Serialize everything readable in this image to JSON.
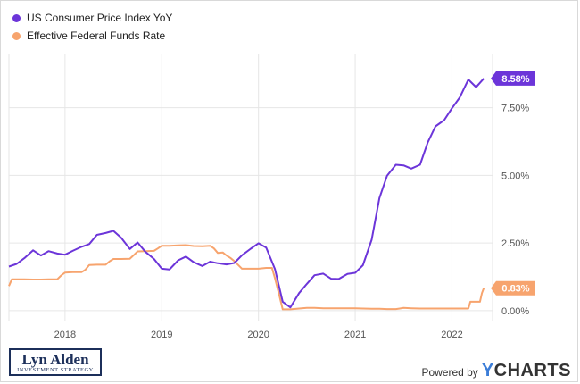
{
  "chart_data": {
    "type": "line",
    "x_ticks": [
      "2018",
      "2019",
      "2020",
      "2021",
      "2022"
    ],
    "y_ticks": [
      "0.00%",
      "2.50%",
      "5.00%",
      "7.50%"
    ],
    "ylim": [
      -0.4,
      9.5
    ],
    "grid": true,
    "legend_position": "top-left",
    "series": [
      {
        "name": "US Consumer Price Index YoY",
        "color": "#6c35d9",
        "end_label": "8.58%",
        "points": [
          [
            2017.42,
            1.63
          ],
          [
            2017.5,
            1.73
          ],
          [
            2017.58,
            1.94
          ],
          [
            2017.67,
            2.23
          ],
          [
            2017.75,
            2.04
          ],
          [
            2017.83,
            2.2
          ],
          [
            2017.92,
            2.11
          ],
          [
            2018.0,
            2.07
          ],
          [
            2018.08,
            2.21
          ],
          [
            2018.17,
            2.36
          ],
          [
            2018.25,
            2.46
          ],
          [
            2018.33,
            2.8
          ],
          [
            2018.42,
            2.87
          ],
          [
            2018.5,
            2.95
          ],
          [
            2018.58,
            2.7
          ],
          [
            2018.67,
            2.28
          ],
          [
            2018.75,
            2.52
          ],
          [
            2018.83,
            2.18
          ],
          [
            2018.92,
            1.91
          ],
          [
            2019.0,
            1.55
          ],
          [
            2019.08,
            1.52
          ],
          [
            2019.17,
            1.86
          ],
          [
            2019.25,
            2.0
          ],
          [
            2019.33,
            1.79
          ],
          [
            2019.42,
            1.65
          ],
          [
            2019.5,
            1.81
          ],
          [
            2019.58,
            1.75
          ],
          [
            2019.67,
            1.71
          ],
          [
            2019.75,
            1.76
          ],
          [
            2019.83,
            2.05
          ],
          [
            2019.92,
            2.29
          ],
          [
            2020.0,
            2.49
          ],
          [
            2020.08,
            2.33
          ],
          [
            2020.17,
            1.54
          ],
          [
            2020.25,
            0.33
          ],
          [
            2020.33,
            0.12
          ],
          [
            2020.42,
            0.65
          ],
          [
            2020.5,
            0.99
          ],
          [
            2020.58,
            1.31
          ],
          [
            2020.67,
            1.37
          ],
          [
            2020.75,
            1.18
          ],
          [
            2020.83,
            1.17
          ],
          [
            2020.92,
            1.36
          ],
          [
            2021.0,
            1.4
          ],
          [
            2021.08,
            1.68
          ],
          [
            2021.17,
            2.62
          ],
          [
            2021.25,
            4.16
          ],
          [
            2021.33,
            4.99
          ],
          [
            2021.42,
            5.39
          ],
          [
            2021.5,
            5.37
          ],
          [
            2021.58,
            5.25
          ],
          [
            2021.67,
            5.39
          ],
          [
            2021.75,
            6.22
          ],
          [
            2021.83,
            6.81
          ],
          [
            2021.92,
            7.04
          ],
          [
            2022.0,
            7.48
          ],
          [
            2022.08,
            7.87
          ],
          [
            2022.17,
            8.54
          ],
          [
            2022.25,
            8.26
          ],
          [
            2022.33,
            8.58
          ]
        ]
      },
      {
        "name": "Effective Federal Funds Rate",
        "color": "#f7a46e",
        "end_label": "0.83%",
        "points": [
          [
            2017.42,
            0.91
          ],
          [
            2017.45,
            1.16
          ],
          [
            2017.5,
            1.16
          ],
          [
            2017.58,
            1.16
          ],
          [
            2017.67,
            1.15
          ],
          [
            2017.75,
            1.15
          ],
          [
            2017.83,
            1.16
          ],
          [
            2017.92,
            1.16
          ],
          [
            2017.96,
            1.3
          ],
          [
            2018.0,
            1.41
          ],
          [
            2018.08,
            1.42
          ],
          [
            2018.17,
            1.42
          ],
          [
            2018.21,
            1.51
          ],
          [
            2018.25,
            1.69
          ],
          [
            2018.33,
            1.7
          ],
          [
            2018.42,
            1.7
          ],
          [
            2018.46,
            1.82
          ],
          [
            2018.5,
            1.91
          ],
          [
            2018.58,
            1.91
          ],
          [
            2018.67,
            1.92
          ],
          [
            2018.71,
            2.05
          ],
          [
            2018.75,
            2.19
          ],
          [
            2018.83,
            2.2
          ],
          [
            2018.92,
            2.21
          ],
          [
            2018.96,
            2.3
          ],
          [
            2019.0,
            2.4
          ],
          [
            2019.08,
            2.4
          ],
          [
            2019.17,
            2.41
          ],
          [
            2019.25,
            2.42
          ],
          [
            2019.33,
            2.39
          ],
          [
            2019.42,
            2.38
          ],
          [
            2019.5,
            2.4
          ],
          [
            2019.54,
            2.3
          ],
          [
            2019.58,
            2.13
          ],
          [
            2019.63,
            2.15
          ],
          [
            2019.67,
            2.04
          ],
          [
            2019.71,
            1.95
          ],
          [
            2019.75,
            1.83
          ],
          [
            2019.83,
            1.55
          ],
          [
            2019.92,
            1.55
          ],
          [
            2020.0,
            1.55
          ],
          [
            2020.08,
            1.58
          ],
          [
            2020.14,
            1.58
          ],
          [
            2020.17,
            1.2
          ],
          [
            2020.21,
            0.65
          ],
          [
            2020.25,
            0.05
          ],
          [
            2020.33,
            0.05
          ],
          [
            2020.42,
            0.08
          ],
          [
            2020.5,
            0.1
          ],
          [
            2020.58,
            0.1
          ],
          [
            2020.67,
            0.09
          ],
          [
            2020.75,
            0.09
          ],
          [
            2020.83,
            0.09
          ],
          [
            2020.92,
            0.09
          ],
          [
            2021.0,
            0.09
          ],
          [
            2021.08,
            0.08
          ],
          [
            2021.17,
            0.07
          ],
          [
            2021.25,
            0.07
          ],
          [
            2021.33,
            0.06
          ],
          [
            2021.42,
            0.06
          ],
          [
            2021.46,
            0.08
          ],
          [
            2021.5,
            0.1
          ],
          [
            2021.58,
            0.09
          ],
          [
            2021.67,
            0.08
          ],
          [
            2021.75,
            0.08
          ],
          [
            2021.83,
            0.08
          ],
          [
            2021.92,
            0.08
          ],
          [
            2022.0,
            0.08
          ],
          [
            2022.08,
            0.08
          ],
          [
            2022.17,
            0.08
          ],
          [
            2022.19,
            0.33
          ],
          [
            2022.25,
            0.33
          ],
          [
            2022.29,
            0.33
          ],
          [
            2022.31,
            0.65
          ],
          [
            2022.33,
            0.83
          ]
        ]
      }
    ]
  },
  "branding": {
    "logo_name": "Lyn Alden",
    "logo_tagline": "INVESTMENT STRATEGY",
    "powered_by": "Powered by",
    "ycharts_y": "Y",
    "ycharts_rest": "CHARTS"
  }
}
